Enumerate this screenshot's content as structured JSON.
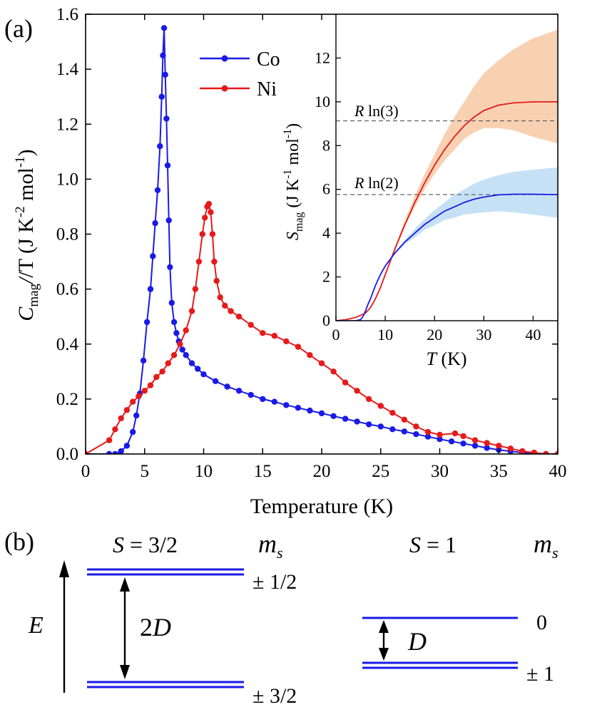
{
  "panel_a_label": "(a)",
  "panel_b_label": "(b)",
  "colors": {
    "co": "#1a1ae6",
    "ni": "#e61a1a",
    "ni_band": "#f7c9a6",
    "co_band": "#bcdcf5",
    "level": "#1a1ae6"
  },
  "chart_data": [
    {
      "type": "line",
      "name": "main",
      "xlabel": "Temperature (K)",
      "ylabel": {
        "c": "C",
        "sub": "mag",
        "rest": "/T (J K",
        "sup1": "-2",
        "mid": " mol",
        "sup2": "-1",
        "end": ")"
      },
      "xlim": [
        0,
        40
      ],
      "ylim": [
        0,
        1.6
      ],
      "xticks": [
        "0",
        "5",
        "10",
        "15",
        "20",
        "25",
        "30",
        "35",
        "40"
      ],
      "yticks": [
        "0.0",
        "0.2",
        "0.4",
        "0.6",
        "0.8",
        "1.0",
        "1.2",
        "1.4",
        "1.6"
      ],
      "legend_position": "top-center",
      "series": [
        {
          "name": "Co",
          "color": "#1a1ae6",
          "x": [
            0,
            2.0,
            2.5,
            3.0,
            3.5,
            4.0,
            4.3,
            4.6,
            4.9,
            5.2,
            5.5,
            5.7,
            5.9,
            6.1,
            6.3,
            6.45,
            6.55,
            6.65,
            6.75,
            6.85,
            6.95,
            7.05,
            7.15,
            7.3,
            7.5,
            7.7,
            7.9,
            8.2,
            8.5,
            9,
            9.5,
            10,
            11,
            12,
            13,
            14,
            15,
            16,
            17,
            18,
            19,
            20,
            21,
            22,
            23,
            24,
            25,
            26,
            27,
            28,
            29,
            30,
            31,
            32,
            33,
            34,
            35,
            36,
            37,
            38,
            39
          ],
          "y": [
            0.0,
            0.0,
            0.0,
            0.01,
            0.03,
            0.08,
            0.14,
            0.22,
            0.34,
            0.48,
            0.6,
            0.72,
            0.84,
            0.96,
            1.12,
            1.3,
            1.45,
            1.55,
            1.38,
            1.22,
            1.05,
            0.85,
            0.68,
            0.55,
            0.48,
            0.44,
            0.41,
            0.38,
            0.36,
            0.33,
            0.31,
            0.29,
            0.265,
            0.245,
            0.23,
            0.215,
            0.2,
            0.19,
            0.178,
            0.168,
            0.158,
            0.148,
            0.138,
            0.128,
            0.118,
            0.108,
            0.1,
            0.09,
            0.082,
            0.072,
            0.063,
            0.054,
            0.046,
            0.038,
            0.03,
            0.022,
            0.015,
            0.01,
            0.005,
            0.002,
            0.0
          ]
        },
        {
          "name": "Ni",
          "color": "#e61a1a",
          "x": [
            0,
            2.0,
            2.5,
            3.0,
            3.5,
            4.0,
            4.5,
            5.0,
            5.5,
            6.0,
            6.5,
            7.0,
            7.5,
            8.0,
            8.5,
            9.0,
            9.3,
            9.6,
            9.9,
            10.1,
            10.3,
            10.45,
            10.6,
            10.75,
            10.9,
            11.1,
            11.4,
            11.8,
            12.3,
            13,
            14,
            15,
            16,
            17,
            18,
            19,
            20,
            21,
            22,
            23,
            24,
            25,
            26,
            27,
            28,
            29,
            30,
            31.3,
            32,
            33,
            34,
            35,
            36,
            37,
            38,
            39,
            40
          ],
          "y": [
            0.0,
            0.05,
            0.09,
            0.13,
            0.16,
            0.19,
            0.21,
            0.23,
            0.25,
            0.28,
            0.3,
            0.33,
            0.36,
            0.4,
            0.45,
            0.52,
            0.6,
            0.7,
            0.8,
            0.86,
            0.9,
            0.91,
            0.88,
            0.8,
            0.7,
            0.63,
            0.57,
            0.54,
            0.52,
            0.5,
            0.47,
            0.44,
            0.43,
            0.41,
            0.39,
            0.36,
            0.33,
            0.3,
            0.26,
            0.23,
            0.2,
            0.175,
            0.15,
            0.125,
            0.1,
            0.08,
            0.07,
            0.075,
            0.065,
            0.05,
            0.04,
            0.03,
            0.02,
            0.01,
            0.005,
            0.0,
            0.0
          ]
        }
      ]
    },
    {
      "type": "line",
      "name": "inset",
      "xlabel": {
        "t": "T",
        "rest": " (K)"
      },
      "ylabel": {
        "s": "S",
        "sub": "mag",
        "rest": " (J K",
        "sup1": "-1",
        "mid": " mol",
        "sup2": "-1",
        "end": ")"
      },
      "xlim": [
        0,
        45
      ],
      "ylim": [
        0,
        14
      ],
      "xticks": [
        "0",
        "10",
        "20",
        "30",
        "40"
      ],
      "yticks": [
        "0",
        "2",
        "4",
        "6",
        "8",
        "10",
        "12"
      ],
      "reference_lines": [
        {
          "label_r": "R",
          "label_rest": " ln(3)",
          "y": 9.13
        },
        {
          "label_r": "R",
          "label_rest": " ln(2)",
          "y": 5.76
        }
      ],
      "series": [
        {
          "name": "Ni",
          "color": "#e61a1a",
          "x": [
            0,
            2,
            4,
            6,
            7,
            8,
            9,
            10,
            12,
            14,
            16,
            18,
            20,
            22,
            24,
            26,
            28,
            30,
            33,
            36,
            40,
            45
          ],
          "y": [
            0,
            0.05,
            0.15,
            0.35,
            0.6,
            1.0,
            1.5,
            2.1,
            3.3,
            4.4,
            5.4,
            6.3,
            7.1,
            7.8,
            8.4,
            8.9,
            9.3,
            9.6,
            9.85,
            9.95,
            10.0,
            10.0
          ],
          "band_upper": [
            0,
            0.05,
            0.15,
            0.35,
            0.6,
            1.0,
            1.5,
            2.15,
            3.4,
            4.6,
            5.7,
            6.7,
            7.6,
            8.5,
            9.3,
            10.0,
            10.7,
            11.3,
            11.9,
            12.4,
            12.9,
            13.3
          ],
          "band_lower": [
            0,
            0.05,
            0.15,
            0.35,
            0.6,
            1.0,
            1.5,
            2.05,
            3.2,
            4.3,
            5.2,
            6.0,
            6.7,
            7.3,
            7.8,
            8.3,
            8.6,
            8.8,
            8.8,
            8.7,
            8.4,
            8.1
          ]
        },
        {
          "name": "Co",
          "color": "#1a1ae6",
          "x": [
            0,
            4,
            5,
            5.5,
            6,
            6.5,
            7,
            8,
            9,
            10,
            12,
            14,
            16,
            18,
            20,
            22,
            24,
            26,
            28,
            30,
            33,
            36,
            40,
            45
          ],
          "y": [
            0,
            0,
            0.05,
            0.2,
            0.45,
            0.75,
            1.0,
            1.6,
            2.1,
            2.5,
            3.1,
            3.6,
            4.0,
            4.4,
            4.7,
            5.0,
            5.2,
            5.4,
            5.55,
            5.65,
            5.75,
            5.78,
            5.78,
            5.76
          ],
          "band_upper": [
            0,
            0,
            0.05,
            0.2,
            0.45,
            0.75,
            1.0,
            1.6,
            2.1,
            2.5,
            3.15,
            3.7,
            4.2,
            4.65,
            5.05,
            5.4,
            5.75,
            6.0,
            6.25,
            6.45,
            6.65,
            6.8,
            6.9,
            7.0
          ],
          "band_lower": [
            0,
            0,
            0.05,
            0.2,
            0.45,
            0.75,
            1.0,
            1.6,
            2.1,
            2.5,
            3.05,
            3.5,
            3.8,
            4.15,
            4.35,
            4.6,
            4.7,
            4.85,
            4.9,
            4.95,
            5.0,
            4.95,
            4.85,
            4.7
          ]
        }
      ]
    }
  ],
  "energy_diagram": {
    "energy_axis_label": "E",
    "left": {
      "title_s": "S",
      "title_rest": " = 3/2",
      "ms_m": "m",
      "ms_s": "s",
      "upper_label": "± 1/2",
      "lower_label": "± 3/2",
      "gap_label_num": "2",
      "gap_label_d": "D"
    },
    "right": {
      "title_s": "S",
      "title_rest": " = 1",
      "ms_m": "m",
      "ms_s": "s",
      "upper_label": "0",
      "lower_label": "± 1",
      "gap_label_d": "D"
    }
  }
}
